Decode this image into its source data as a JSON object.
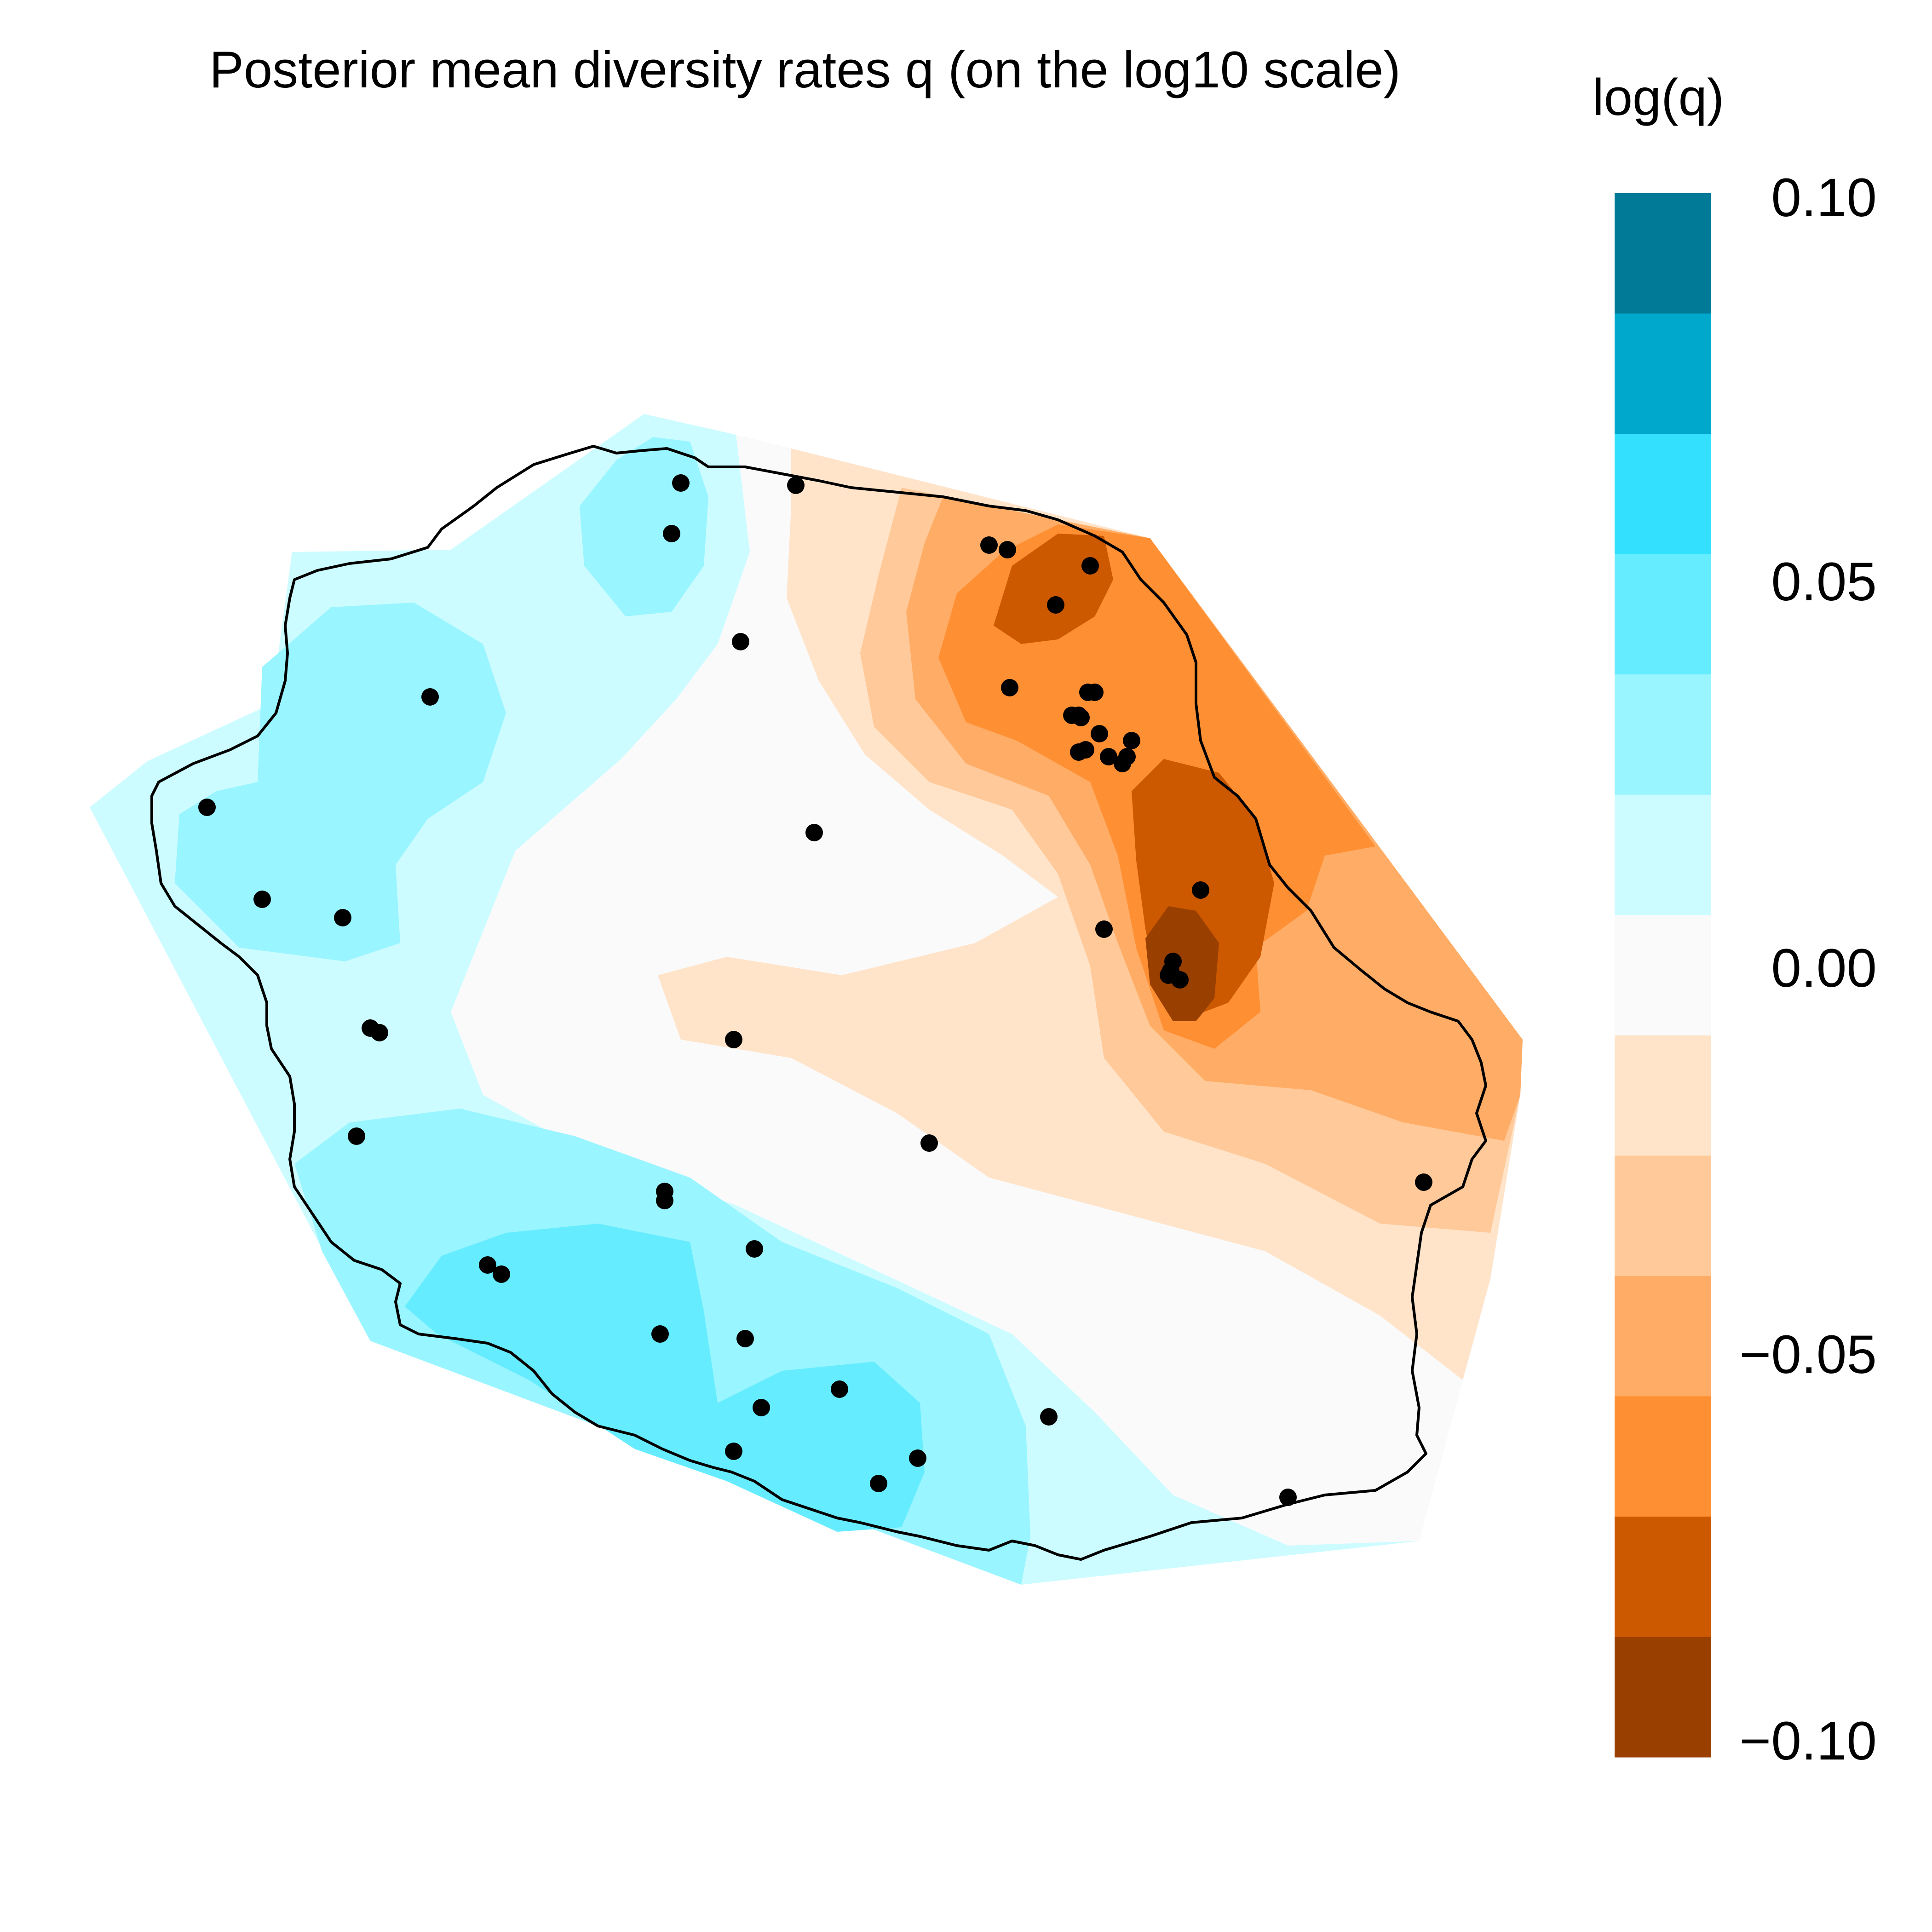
{
  "title": "Posterior mean diversity rates q (on the log10 scale)",
  "legend": {
    "title": "log(q)",
    "tick_labels": [
      "0.10",
      "0.05",
      "0.00",
      "−0.05",
      "−0.10"
    ],
    "tick_values": [
      0.1,
      0.05,
      0.0,
      -0.05,
      -0.1
    ],
    "range": [
      -0.1,
      0.1
    ],
    "bins": [
      {
        "from": 0.0833,
        "to": 0.1,
        "color": "#007A96"
      },
      {
        "from": 0.0667,
        "to": 0.0833,
        "color": "#00A8CC"
      },
      {
        "from": 0.05,
        "to": 0.0667,
        "color": "#33E1FF"
      },
      {
        "from": 0.0333,
        "to": 0.05,
        "color": "#66ECFF"
      },
      {
        "from": 0.0167,
        "to": 0.0333,
        "color": "#99F5FF"
      },
      {
        "from": 0.0,
        "to": 0.0167,
        "color": "#CCFCFF"
      },
      {
        "from": -0.0167,
        "to": 0.0,
        "color": "#FAFAFA"
      },
      {
        "from": -0.0333,
        "to": -0.0167,
        "color": "#FFE4CA"
      },
      {
        "from": -0.05,
        "to": -0.0333,
        "color": "#FFC999"
      },
      {
        "from": -0.0667,
        "to": -0.05,
        "color": "#FFAD66"
      },
      {
        "from": -0.0833,
        "to": -0.0667,
        "color": "#FF8F33"
      },
      {
        "from": -0.1,
        "to": -0.0833,
        "color": "#CC5800"
      },
      {
        "from": -0.1167,
        "to": -0.1,
        "color": "#994000"
      }
    ]
  },
  "map": {
    "colors": {
      "c1": "#CCFCFF",
      "c2": "#99F5FF",
      "c3": "#66ECFF",
      "n": "#FAFAFA",
      "o1": "#FFE4CA",
      "o2": "#FFC999",
      "o3": "#FFAD66",
      "o4": "#FF8F33",
      "o5": "#CC5800",
      "o6": "#994000",
      "outline": "#000000",
      "point": "#000000"
    },
    "sample_count": 58
  }
}
